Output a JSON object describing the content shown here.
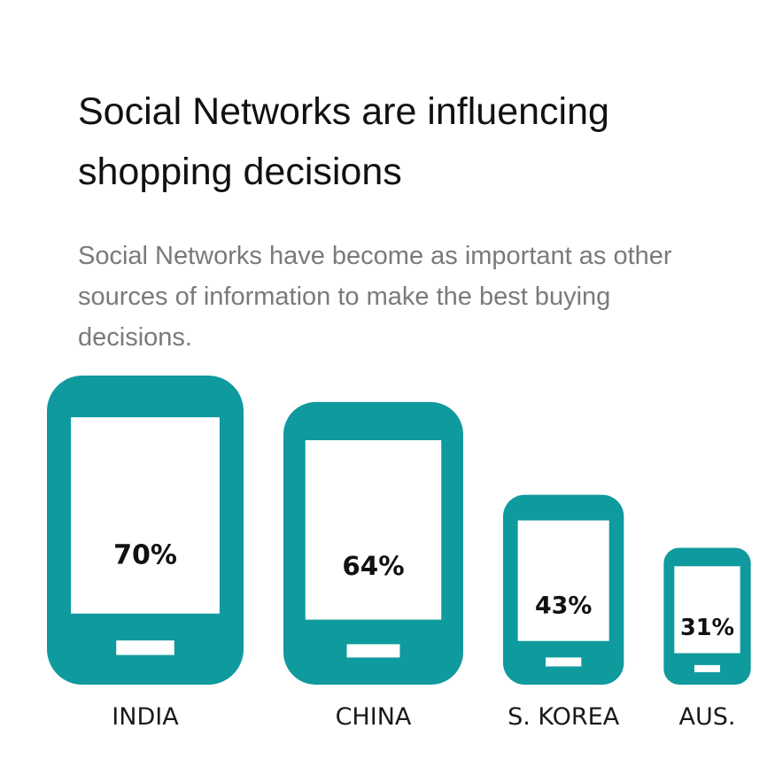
{
  "title": "Social Networks are influencing shopping decisions",
  "subtitle": "Social Networks have become as important as other sources of information to make the best buying decisions.",
  "colors": {
    "phone": "#0f9a9e",
    "screen": "#ffffff",
    "value_text": "#111111",
    "category_text": "#1a1a1a"
  },
  "chart_data": {
    "type": "bar",
    "categories": [
      "INDIA",
      "CHINA",
      "S. KOREA",
      "AUS."
    ],
    "values": [
      70,
      64,
      43,
      31
    ],
    "value_labels": [
      "70%",
      "64%",
      "43%",
      "31%"
    ],
    "mark": "phone-icon"
  }
}
